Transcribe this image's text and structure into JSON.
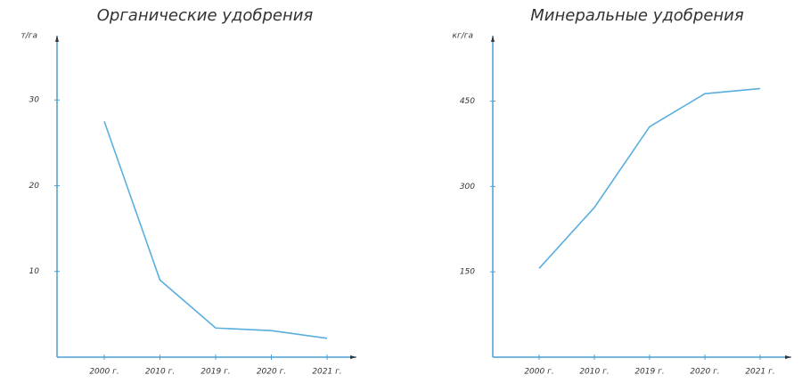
{
  "chart_data": [
    {
      "type": "line",
      "title": "Органические удобрения",
      "y_label": "т/га",
      "categories": [
        "2000 г.",
        "2010 г.",
        "2019 г.",
        "2020 г.",
        "2021 г."
      ],
      "values": [
        27.5,
        9,
        3.4,
        3.1,
        2.2
      ],
      "color": "#5aaede",
      "ylim": [
        0,
        37.5
      ],
      "yticks": [
        10,
        20,
        30
      ]
    },
    {
      "type": "line",
      "title": "Минеральные удобрения",
      "y_label": "кг/га",
      "categories": [
        "2000 г.",
        "2010 г.",
        "2019 г.",
        "2020 г.",
        "2021 г."
      ],
      "values": [
        156,
        263,
        405,
        463,
        472
      ],
      "color": "#5aaede",
      "ylim": [
        0,
        565
      ],
      "yticks": [
        150,
        300,
        450
      ]
    }
  ]
}
